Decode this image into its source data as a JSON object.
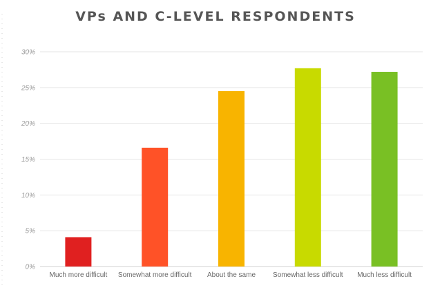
{
  "chart_data": {
    "type": "bar",
    "title": "VPs AND C-LEVEL RESPONDENTS",
    "xlabel": "",
    "ylabel": "",
    "categories": [
      "Much more difficult",
      "Somewhat more difficult",
      "About the same",
      "Somewhat less difficult",
      "Much less difficult"
    ],
    "values": [
      4.1,
      16.6,
      24.5,
      27.7,
      27.2
    ],
    "colors": [
      "#e02020",
      "#ff5227",
      "#f8b400",
      "#c8da00",
      "#79c024"
    ],
    "ylim": [
      0,
      30
    ],
    "yticks": [
      0,
      5,
      10,
      15,
      20,
      25,
      30
    ],
    "ytick_labels": [
      "0%",
      "5%",
      "10%",
      "15%",
      "20%",
      "25%",
      "30%"
    ],
    "grid": true
  }
}
